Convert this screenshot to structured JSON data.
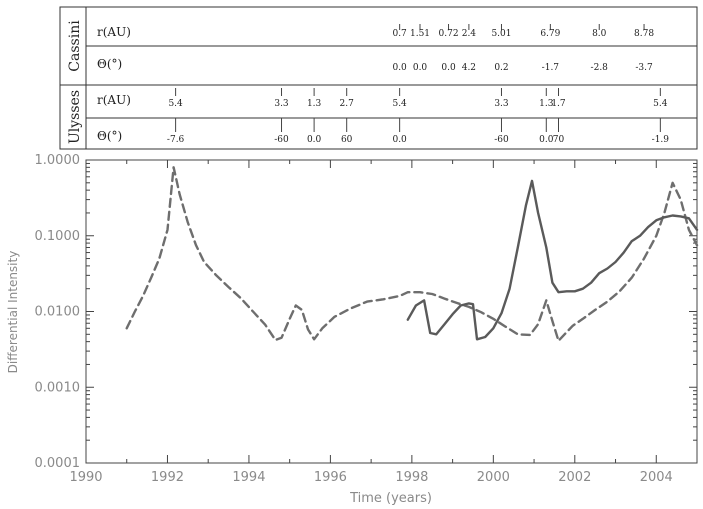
{
  "header_table": {
    "rows": [
      {
        "mission": "Cassini",
        "sub": [
          {
            "label": "r(AU)",
            "entries": [
              {
                "year": 1997.7,
                "text": "0.7"
              },
              {
                "year": 1998.2,
                "text": "1.51"
              },
              {
                "year": 1998.9,
                "text": "0.72"
              },
              {
                "year": 1999.4,
                "text": "2.4"
              },
              {
                "year": 2000.2,
                "text": "5.01"
              },
              {
                "year": 2001.4,
                "text": "6.79"
              },
              {
                "year": 2002.6,
                "text": "8.0"
              },
              {
                "year": 2003.7,
                "text": "8.78"
              }
            ]
          },
          {
            "label": "Θ(°)",
            "entries": [
              {
                "year": 1997.7,
                "text": "0.0"
              },
              {
                "year": 1998.2,
                "text": "0.0"
              },
              {
                "year": 1998.9,
                "text": "0.0"
              },
              {
                "year": 1999.4,
                "text": "4.2"
              },
              {
                "year": 2000.2,
                "text": "0.2"
              },
              {
                "year": 2001.4,
                "text": "-1.7"
              },
              {
                "year": 2002.6,
                "text": "-2.8"
              },
              {
                "year": 2003.7,
                "text": "-3.7"
              }
            ]
          }
        ]
      },
      {
        "mission": "Ulysses",
        "sub": [
          {
            "label": "r(AU)",
            "entries": [
              {
                "year": 1992.2,
                "text": "5.4"
              },
              {
                "year": 1994.8,
                "text": "3.3"
              },
              {
                "year": 1995.6,
                "text": "1.3"
              },
              {
                "year": 1996.4,
                "text": "2.7"
              },
              {
                "year": 1997.7,
                "text": "5.4"
              },
              {
                "year": 2000.2,
                "text": "3.3"
              },
              {
                "year": 2001.3,
                "text": "1.3"
              },
              {
                "year": 2001.6,
                "text": "1.7"
              },
              {
                "year": 2004.1,
                "text": "5.4"
              }
            ]
          },
          {
            "label": "Θ(°)",
            "entries": [
              {
                "year": 1992.2,
                "text": "-7.6"
              },
              {
                "year": 1994.8,
                "text": "-60"
              },
              {
                "year": 1995.6,
                "text": "0.0"
              },
              {
                "year": 1996.4,
                "text": "60"
              },
              {
                "year": 1997.7,
                "text": "0.0"
              },
              {
                "year": 2000.2,
                "text": "-60"
              },
              {
                "year": 2001.3,
                "text": "0.0"
              },
              {
                "year": 2001.6,
                "text": "70"
              },
              {
                "year": 2004.1,
                "text": "-1.9"
              }
            ]
          }
        ]
      }
    ]
  },
  "chart_data": {
    "type": "line",
    "title": "",
    "xlabel": "Time (years)",
    "ylabel": "Differential Intensity",
    "xlim": [
      1990,
      2005
    ],
    "ylim": [
      0.0001,
      1.0
    ],
    "y_scale": "log",
    "grid": false,
    "x_ticks": [
      1990,
      1992,
      1994,
      1996,
      1998,
      2000,
      2002,
      2004
    ],
    "x_tick_labels": [
      "1990",
      "1992",
      "1994",
      "1996",
      "1998",
      "2000",
      "2002",
      "2004"
    ],
    "y_ticks": [
      0.0001,
      0.001,
      0.01,
      0.1,
      1.0
    ],
    "y_tick_labels": [
      "0.0001",
      "0.0010",
      "0.0100",
      "0.1000",
      "1.0000"
    ],
    "series": [
      {
        "style": "dashed",
        "color": "#6e6e6e",
        "x": [
          1991.0,
          1991.2,
          1991.4,
          1991.6,
          1991.8,
          1992.0,
          1992.15,
          1992.3,
          1992.5,
          1992.7,
          1992.9,
          1993.2,
          1993.5,
          1993.8,
          1994.1,
          1994.4,
          1994.65,
          1994.8,
          1995.0,
          1995.15,
          1995.3,
          1995.45,
          1995.6,
          1995.8,
          1996.1,
          1996.5,
          1996.9,
          1997.3,
          1997.7,
          1997.9,
          1998.2,
          1998.5,
          1998.8,
          1999.1,
          1999.4,
          1999.7,
          2000.0,
          2000.3,
          2000.6,
          2000.9,
          2001.1,
          2001.3,
          2001.45,
          2001.6,
          2001.75,
          2001.95,
          2002.2,
          2002.5,
          2002.8,
          2003.1,
          2003.4,
          2003.7,
          2004.0,
          2004.2,
          2004.4,
          2004.6,
          2004.8,
          2005.0
        ],
        "y": [
          0.006,
          0.01,
          0.016,
          0.028,
          0.05,
          0.12,
          0.8,
          0.35,
          0.15,
          0.075,
          0.045,
          0.03,
          0.021,
          0.015,
          0.01,
          0.0067,
          0.0042,
          0.0045,
          0.008,
          0.012,
          0.0105,
          0.0058,
          0.0043,
          0.006,
          0.0085,
          0.011,
          0.0135,
          0.0145,
          0.016,
          0.018,
          0.018,
          0.017,
          0.0148,
          0.013,
          0.0115,
          0.0098,
          0.008,
          0.0063,
          0.005,
          0.0049,
          0.0068,
          0.014,
          0.0075,
          0.0041,
          0.005,
          0.0065,
          0.008,
          0.0105,
          0.0135,
          0.0185,
          0.028,
          0.05,
          0.1,
          0.2,
          0.5,
          0.3,
          0.12,
          0.075
        ]
      },
      {
        "style": "solid",
        "color": "#5a5a5a",
        "x": [
          1997.9,
          1998.1,
          1998.3,
          1998.45,
          1998.6,
          1998.8,
          1999.0,
          1999.2,
          1999.4,
          1999.5,
          1999.6,
          1999.8,
          2000.0,
          2000.2,
          2000.4,
          2000.6,
          2000.8,
          2000.95,
          2001.1,
          2001.3,
          2001.45,
          2001.6,
          2001.8,
          2002.0,
          2002.2,
          2002.4,
          2002.6,
          2002.8,
          2003.0,
          2003.2,
          2003.4,
          2003.6,
          2003.8,
          2004.0,
          2004.2,
          2004.4,
          2004.6,
          2004.8,
          2005.0
        ],
        "y": [
          0.0078,
          0.012,
          0.014,
          0.0052,
          0.005,
          0.0068,
          0.0092,
          0.012,
          0.0128,
          0.0125,
          0.0043,
          0.0046,
          0.006,
          0.0095,
          0.02,
          0.07,
          0.25,
          0.53,
          0.2,
          0.07,
          0.024,
          0.018,
          0.0185,
          0.0185,
          0.02,
          0.024,
          0.032,
          0.037,
          0.045,
          0.06,
          0.085,
          0.1,
          0.13,
          0.16,
          0.175,
          0.185,
          0.18,
          0.17,
          0.12
        ]
      }
    ]
  }
}
